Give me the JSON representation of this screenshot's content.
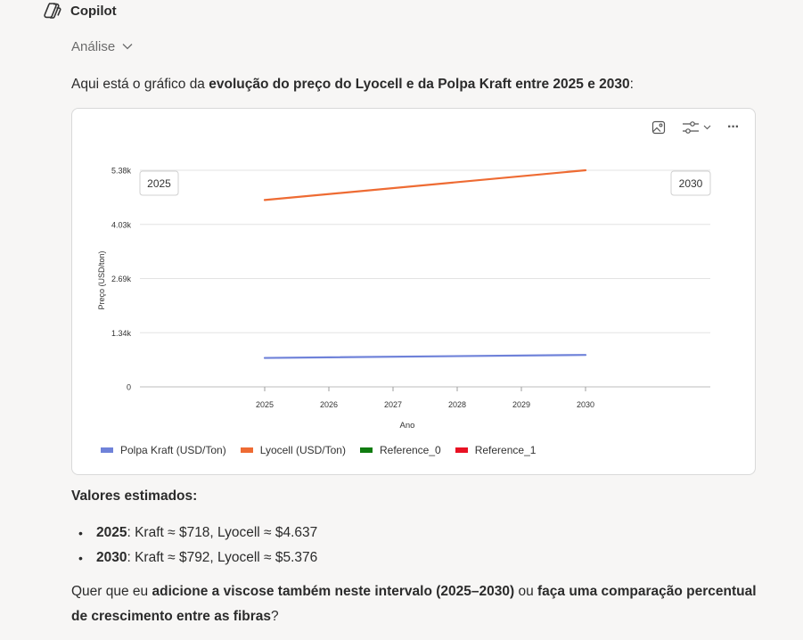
{
  "app": {
    "name": "Copilot"
  },
  "analysis": {
    "label": "Análise"
  },
  "intro": {
    "prefix": "Aqui está o gráfico da ",
    "bold": "evolução do preço do Lyocell e da Polpa Kraft entre 2025 e 2030",
    "suffix": ":"
  },
  "toolbar": {
    "icons": [
      "image-icon",
      "sliders-icon",
      "more-icon"
    ],
    "more_label": "···"
  },
  "chart_data": {
    "type": "line",
    "x": [
      2025,
      2026,
      2027,
      2028,
      2029,
      2030
    ],
    "x_tick_labels": [
      "2025",
      "2026",
      "2027",
      "2028",
      "2029",
      "2030"
    ],
    "y_tick_labels": [
      "0",
      "1.34k",
      "2.69k",
      "4.03k",
      "5.38k"
    ],
    "ylim": [
      0,
      5376
    ],
    "xlabel": "Ano",
    "ylabel": "Preço (USD/ton)",
    "range_labels": [
      "2025",
      "2030"
    ],
    "grid": true,
    "legend_position": "bottom-left",
    "series": [
      {
        "name": "Polpa Kraft (USD/Ton)",
        "color": "#6f82d9",
        "points": [
          [
            2025,
            718
          ],
          [
            2030,
            792
          ]
        ]
      },
      {
        "name": "Lyocell (USD/Ton)",
        "color": "#ee6b33",
        "points": [
          [
            2025,
            4637
          ],
          [
            2030,
            5376
          ]
        ]
      }
    ],
    "legend": [
      {
        "name": "Polpa Kraft (USD/Ton)",
        "color": "#6f82d9"
      },
      {
        "name": "Lyocell (USD/Ton)",
        "color": "#ee6b33"
      },
      {
        "name": "Reference_0",
        "color": "#107c10"
      },
      {
        "name": "Reference_1",
        "color": "#e81123"
      }
    ]
  },
  "estimates": {
    "title": "Valores estimados:",
    "items": [
      {
        "year": "2025",
        "text": ": Kraft ≈ $718, Lyocell ≈ $4.637"
      },
      {
        "year": "2030",
        "text": ": Kraft ≈ $792, Lyocell ≈ $5.376"
      }
    ]
  },
  "question": {
    "p1": "Quer que eu ",
    "b1": "adicione a viscose também neste intervalo (2025–2030)",
    "p2": " ou ",
    "b2": "faça uma comparação percentual de crescimento entre as fibras",
    "p3": "?"
  }
}
